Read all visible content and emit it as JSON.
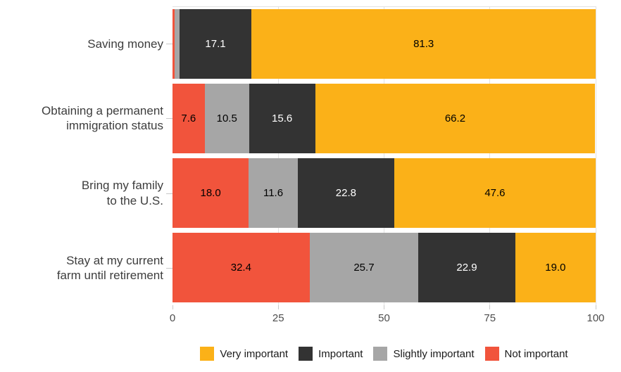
{
  "chart_data": {
    "type": "bar",
    "orientation": "horizontal_stacked",
    "title": "",
    "xlabel": "",
    "ylabel": "",
    "xlim": [
      0,
      100
    ],
    "x_ticks": [
      "0",
      "25",
      "50",
      "75",
      "100"
    ],
    "x_tick_values": [
      0,
      25,
      50,
      75,
      100
    ],
    "grid": "vertical major gridlines, light gray, plus light top border line",
    "legend_position": "bottom center",
    "categories": [
      "Saving money",
      "Obtaining a permanent immigration status",
      "Bring my family to the U.S.",
      "Stay at my current farm until retirement"
    ],
    "category_lines": [
      [
        "Saving money"
      ],
      [
        "Obtaining a permanent",
        "immigration status"
      ],
      [
        "Bring my family",
        "to the U.S."
      ],
      [
        "Stay at my current",
        "farm until retirement"
      ]
    ],
    "segment_order_note": "segments drawn left to right: Not important, Slightly important, Important, Very important",
    "series": [
      {
        "name": "Not important",
        "color": "#F1543C",
        "label_color": "#000000",
        "values": [
          0.5,
          7.6,
          18.0,
          32.4
        ],
        "labels": [
          "",
          "7.6",
          "18.0",
          "32.4"
        ]
      },
      {
        "name": "Slightly important",
        "color": "#A6A6A6",
        "label_color": "#000000",
        "values": [
          1.1,
          10.5,
          11.6,
          25.7
        ],
        "labels": [
          "",
          "10.5",
          "11.6",
          "25.7"
        ]
      },
      {
        "name": "Important",
        "color": "#333333",
        "label_color": "#FFFFFF",
        "values": [
          17.1,
          15.6,
          22.8,
          22.9
        ],
        "labels": [
          "17.1",
          "15.6",
          "22.8",
          "22.9"
        ]
      },
      {
        "name": "Very important",
        "color": "#FBB118",
        "label_color": "#000000",
        "values": [
          81.3,
          66.2,
          47.6,
          19.0
        ],
        "labels": [
          "81.3",
          "66.2",
          "47.6",
          "19.0"
        ]
      }
    ],
    "legend": [
      {
        "label": "Very important",
        "color": "#FBB118"
      },
      {
        "label": "Important",
        "color": "#333333"
      },
      {
        "label": "Slightly important",
        "color": "#A6A6A6"
      },
      {
        "label": "Not important",
        "color": "#F1543C"
      }
    ],
    "colors": {
      "background": "#FFFFFF",
      "gridline": "#E2E2E2",
      "tick": "#C9C9C9",
      "axis_text": "#4D4D4D",
      "category_text": "#3D3D3D"
    }
  }
}
